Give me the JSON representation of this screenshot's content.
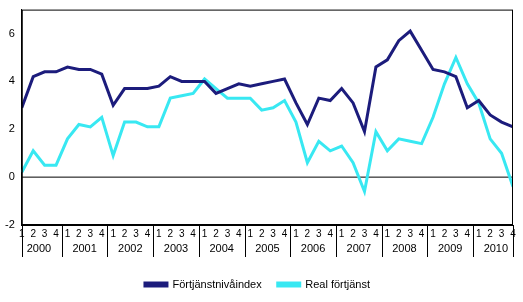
{
  "chart_data": {
    "type": "line",
    "categories": [
      "1",
      "2",
      "3",
      "4",
      "1",
      "2",
      "3",
      "4",
      "1",
      "2",
      "3",
      "4",
      "1",
      "2",
      "3",
      "4",
      "1",
      "2",
      "3",
      "4",
      "1",
      "2",
      "3",
      "4",
      "1",
      "2",
      "3",
      "4",
      "1",
      "2",
      "3",
      "4",
      "1",
      "2",
      "3",
      "4",
      "1",
      "2",
      "3",
      "4",
      "1",
      "2",
      "3",
      "4"
    ],
    "years": [
      "2000",
      "2001",
      "2002",
      "2003",
      "2004",
      "2005",
      "2006",
      "2007",
      "2008",
      "2009",
      "2010"
    ],
    "series": [
      {
        "name": "Förtjänstnivåindex",
        "color": "#1c1c7c",
        "values": [
          2.9,
          4.2,
          4.4,
          4.4,
          4.6,
          4.5,
          4.5,
          4.3,
          3.0,
          3.7,
          3.7,
          3.7,
          3.8,
          4.2,
          4.0,
          4.0,
          4.0,
          3.5,
          3.7,
          3.9,
          3.8,
          3.9,
          4.0,
          4.1,
          3.1,
          2.2,
          3.3,
          3.2,
          3.7,
          3.1,
          1.9,
          4.6,
          4.9,
          5.7,
          6.1,
          5.3,
          4.5,
          4.4,
          4.2,
          2.9,
          3.2,
          2.6,
          2.3,
          2.1
        ]
      },
      {
        "name": "Real förtjänst",
        "color": "#38e8f2",
        "values": [
          0.2,
          1.1,
          0.5,
          0.5,
          1.6,
          2.2,
          2.1,
          2.5,
          0.9,
          2.3,
          2.3,
          2.1,
          2.1,
          3.3,
          3.4,
          3.5,
          4.1,
          3.7,
          3.3,
          3.3,
          3.3,
          2.8,
          2.9,
          3.2,
          2.3,
          0.6,
          1.5,
          1.1,
          1.3,
          0.6,
          -0.6,
          1.9,
          1.1,
          1.6,
          1.5,
          1.4,
          2.5,
          3.9,
          5.0,
          3.9,
          3.1,
          1.6,
          1.0,
          -0.4
        ]
      }
    ],
    "ylim": [
      -2,
      7
    ],
    "yticks": [
      -2,
      0,
      2,
      4,
      6
    ],
    "grid": false,
    "legend": "bottom"
  }
}
